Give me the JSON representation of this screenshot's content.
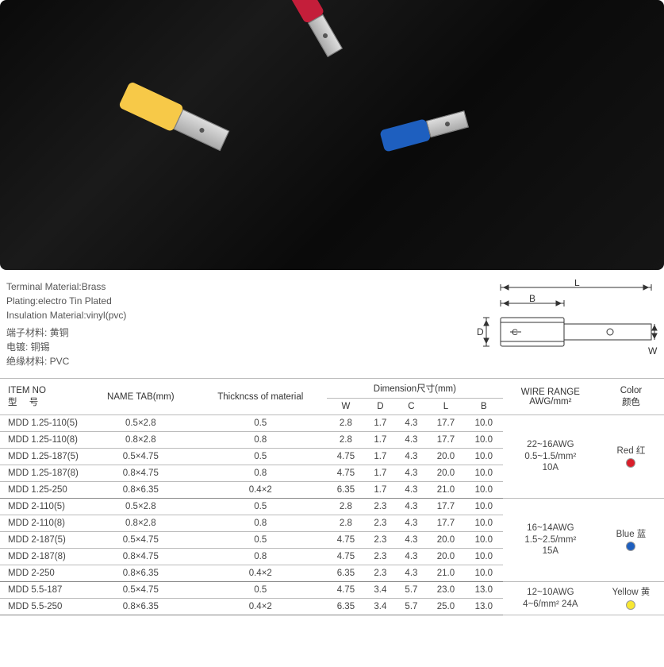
{
  "photo": {
    "background": "dark-rock",
    "terminals": [
      {
        "color": "#c41e3a",
        "name": "red-terminal"
      },
      {
        "color": "#f7c948",
        "name": "yellow-terminal"
      },
      {
        "color": "#1e5fbf",
        "name": "blue-terminal"
      }
    ]
  },
  "specs": {
    "en": [
      "Terminal Material:Brass",
      "Plating:electro Tin Plated",
      "Insulation Material:vinyl(pvc)"
    ],
    "cn": [
      "端子材料:  黄铜",
      "电镀:  铜锡",
      "绝缘材料:  PVC"
    ]
  },
  "diagram": {
    "labels": {
      "L": "L",
      "B": "B",
      "D": "D",
      "C": "C",
      "W": "W"
    }
  },
  "table": {
    "headers": {
      "item_no": "ITEM NO",
      "item_no_sub": "型      号",
      "name_tab": "NAME TAB(mm)",
      "thickness": "Thickncss of material",
      "dimension": "Dimension尺寸(mm)",
      "dim_W": "W",
      "dim_D": "D",
      "dim_C": "C",
      "dim_L": "L",
      "dim_B": "B",
      "wire_range": "WIRE RANGE",
      "wire_range_sub": "AWG/mm²",
      "color": "Color",
      "color_sub": "颜色"
    },
    "groups": [
      {
        "wire_range": "22~16AWG\n0.5~1.5/mm²\n10A",
        "color_label": "Red 红",
        "color_dot": "#d91e2a",
        "rows": [
          {
            "item": "MDD 1.25-110(5)",
            "tab": "0.5×2.8",
            "thk": "0.5",
            "W": "2.8",
            "D": "1.7",
            "C": "4.3",
            "L": "17.7",
            "B": "10.0"
          },
          {
            "item": "MDD 1.25-110(8)",
            "tab": "0.8×2.8",
            "thk": "0.8",
            "W": "2.8",
            "D": "1.7",
            "C": "4.3",
            "L": "17.7",
            "B": "10.0"
          },
          {
            "item": "MDD 1.25-187(5)",
            "tab": "0.5×4.75",
            "thk": "0.5",
            "W": "4.75",
            "D": "1.7",
            "C": "4.3",
            "L": "20.0",
            "B": "10.0"
          },
          {
            "item": "MDD 1.25-187(8)",
            "tab": "0.8×4.75",
            "thk": "0.8",
            "W": "4.75",
            "D": "1.7",
            "C": "4.3",
            "L": "20.0",
            "B": "10.0"
          },
          {
            "item": "MDD 1.25-250",
            "tab": "0.8×6.35",
            "thk": "0.4×2",
            "W": "6.35",
            "D": "1.7",
            "C": "4.3",
            "L": "21.0",
            "B": "10.0"
          }
        ]
      },
      {
        "wire_range": "16~14AWG\n1.5~2.5/mm²\n15A",
        "color_label": "Blue 蓝",
        "color_dot": "#1e5fbf",
        "rows": [
          {
            "item": "MDD 2-110(5)",
            "tab": "0.5×2.8",
            "thk": "0.5",
            "W": "2.8",
            "D": "2.3",
            "C": "4.3",
            "L": "17.7",
            "B": "10.0"
          },
          {
            "item": "MDD 2-110(8)",
            "tab": "0.8×2.8",
            "thk": "0.8",
            "W": "2.8",
            "D": "2.3",
            "C": "4.3",
            "L": "17.7",
            "B": "10.0"
          },
          {
            "item": "MDD 2-187(5)",
            "tab": "0.5×4.75",
            "thk": "0.5",
            "W": "4.75",
            "D": "2.3",
            "C": "4.3",
            "L": "20.0",
            "B": "10.0"
          },
          {
            "item": "MDD 2-187(8)",
            "tab": "0.8×4.75",
            "thk": "0.8",
            "W": "4.75",
            "D": "2.3",
            "C": "4.3",
            "L": "20.0",
            "B": "10.0"
          },
          {
            "item": "MDD 2-250",
            "tab": "0.8×6.35",
            "thk": "0.4×2",
            "W": "6.35",
            "D": "2.3",
            "C": "4.3",
            "L": "21.0",
            "B": "10.0"
          }
        ]
      },
      {
        "wire_range": "12~10AWG\n4~6/mm²  24A",
        "color_label": "Yellow 黄",
        "color_dot": "#f7e733",
        "rows": [
          {
            "item": "MDD 5.5-187",
            "tab": "0.5×4.75",
            "thk": "0.5",
            "W": "4.75",
            "D": "3.4",
            "C": "5.7",
            "L": "23.0",
            "B": "13.0"
          },
          {
            "item": "MDD 5.5-250",
            "tab": "0.8×6.35",
            "thk": "0.4×2",
            "W": "6.35",
            "D": "3.4",
            "C": "5.7",
            "L": "25.0",
            "B": "13.0"
          }
        ]
      }
    ]
  }
}
